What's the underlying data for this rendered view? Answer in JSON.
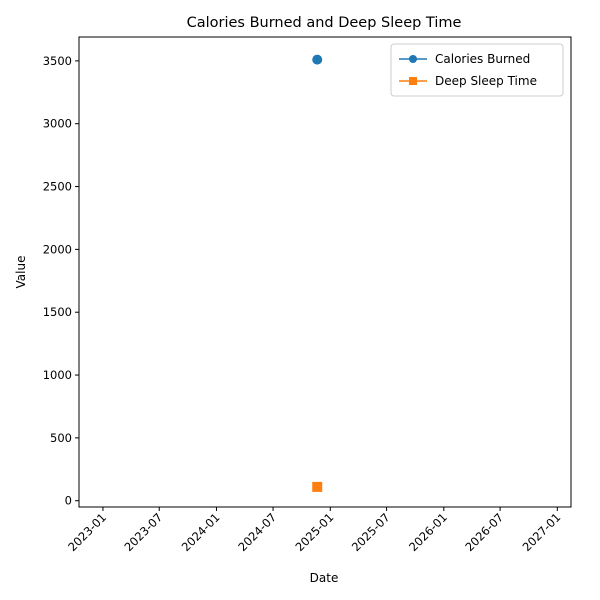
{
  "chart_data": {
    "type": "line",
    "title": "Calories Burned and Deep Sleep Time",
    "xlabel": "Date",
    "ylabel": "Value",
    "x_is_date": true,
    "xlim": [
      "2022-10-16",
      "2027-02-14"
    ],
    "ylim": [
      -50,
      3690
    ],
    "x_ticks": [
      {
        "date": "2023-01-01",
        "label": "2023-01"
      },
      {
        "date": "2023-07-01",
        "label": "2023-07"
      },
      {
        "date": "2024-01-01",
        "label": "2024-01"
      },
      {
        "date": "2024-07-01",
        "label": "2024-07"
      },
      {
        "date": "2025-01-01",
        "label": "2025-01"
      },
      {
        "date": "2025-07-01",
        "label": "2025-07"
      },
      {
        "date": "2026-01-01",
        "label": "2026-01"
      },
      {
        "date": "2026-07-01",
        "label": "2026-07"
      },
      {
        "date": "2027-01-01",
        "label": "2027-01"
      }
    ],
    "y_ticks": [
      0,
      500,
      1000,
      1500,
      2000,
      2500,
      3000,
      3500
    ],
    "grid": false,
    "legend_position": "top-right",
    "series": [
      {
        "name": "Calories Burned",
        "color": "#1f77b4",
        "marker": "circle",
        "points": [
          {
            "x": "2024-11-20",
            "y": 3510
          }
        ]
      },
      {
        "name": "Deep Sleep Time",
        "color": "#ff7f0e",
        "marker": "square",
        "points": [
          {
            "x": "2024-11-20",
            "y": 110
          }
        ]
      }
    ]
  }
}
